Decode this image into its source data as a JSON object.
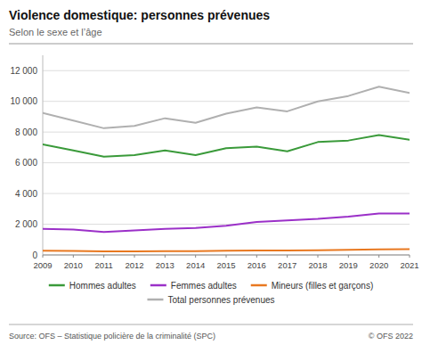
{
  "chart_data": {
    "type": "line",
    "title": "Violence domestique: personnes prévenues",
    "subtitle": "Selon le sexe et l’âge",
    "annotations": [
      "Source: OFS – Statistique policière de la criminalité (SPC)",
      "© OFS 2022"
    ],
    "x": [
      2009,
      2010,
      2011,
      2012,
      2013,
      2014,
      2015,
      2016,
      2017,
      2018,
      2019,
      2020,
      2021
    ],
    "xlim": [
      2009,
      2021
    ],
    "xticks": [
      2009,
      2010,
      2011,
      2012,
      2013,
      2014,
      2015,
      2016,
      2017,
      2018,
      2019,
      2020,
      2021
    ],
    "ylim": [
      0,
      13000
    ],
    "yticks": [
      0,
      {
        "value": 2000,
        "label": "2 000"
      },
      {
        "value": 4000,
        "label": "4 000"
      },
      {
        "value": 6000,
        "label": "6 000"
      },
      {
        "value": 8000,
        "label": "8 000"
      },
      {
        "value": 10000,
        "label": "10 000"
      },
      {
        "value": 12000,
        "label": "12 000"
      }
    ],
    "grid": true,
    "legend": "bottom",
    "series": [
      {
        "name": "Hommes adultes",
        "color": "#3a9a3a",
        "values": [
          7200,
          6800,
          6400,
          6500,
          6800,
          6500,
          6950,
          7050,
          6750,
          7350,
          7450,
          7800,
          7500
        ]
      },
      {
        "name": "Femmes adultes",
        "color": "#9b30c8",
        "values": [
          1700,
          1650,
          1500,
          1600,
          1700,
          1750,
          1900,
          2150,
          2250,
          2350,
          2500,
          2700,
          2700
        ]
      },
      {
        "name": "Mineurs (filles et garçons)",
        "color": "#e87820",
        "values": [
          280,
          260,
          230,
          230,
          250,
          240,
          270,
          290,
          290,
          310,
          330,
          360,
          370
        ]
      },
      {
        "name": "Total personnes prévenues",
        "color": "#b0b0b0",
        "values": [
          9250,
          8750,
          8250,
          8400,
          8900,
          8600,
          9200,
          9600,
          9350,
          10000,
          10350,
          10950,
          10550
        ]
      }
    ]
  }
}
